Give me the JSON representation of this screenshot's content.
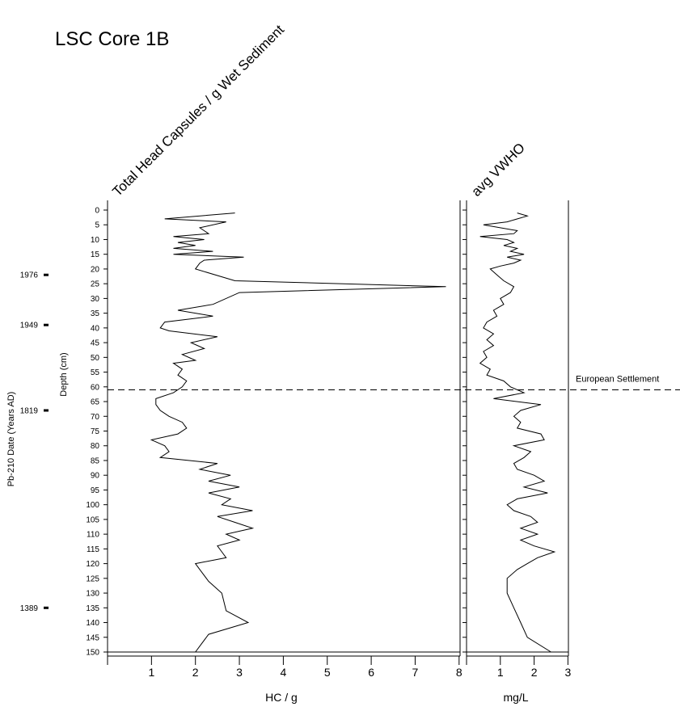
{
  "chart_data": {
    "type": "line",
    "title": "LSC Core 1B",
    "ylabel": "Depth (cm)",
    "ylim": [
      0,
      150
    ],
    "yticks": [
      0,
      5,
      10,
      15,
      20,
      25,
      30,
      35,
      40,
      45,
      50,
      55,
      60,
      65,
      70,
      75,
      80,
      85,
      90,
      95,
      100,
      105,
      110,
      115,
      120,
      125,
      130,
      135,
      140,
      145,
      150
    ],
    "y_inverted": true,
    "date_axis": {
      "label": "Pb-210 Date (Years AD)",
      "markers": [
        {
          "label": "1976",
          "depth": 22
        },
        {
          "label": "1949",
          "depth": 39
        },
        {
          "label": "1819",
          "depth": 68
        },
        {
          "label": "1389",
          "depth": 135
        }
      ]
    },
    "reference_line": {
      "depth": 61,
      "label": "European Settlement",
      "style": "dashed"
    },
    "panels": [
      {
        "title": "Total Head Capsules / g Wet Sediment",
        "xlabel": "HC / g",
        "xlim": [
          0,
          8
        ],
        "xticks": [
          1,
          2,
          3,
          4,
          5,
          6,
          7,
          8
        ],
        "series": [
          {
            "depth": [
              1,
              3,
              4,
              6,
              8,
              9,
              10,
              11,
              12,
              13,
              14,
              15,
              16,
              17,
              18,
              20,
              24,
              26,
              28,
              32,
              34,
              36,
              38,
              40,
              41,
              43,
              45,
              47,
              49,
              51,
              52,
              54,
              56,
              58,
              60,
              62,
              64,
              66,
              68,
              70,
              72,
              74,
              76,
              78,
              80,
              82,
              84,
              86,
              88,
              90,
              92,
              94,
              96,
              98,
              100,
              102,
              104,
              106,
              108,
              110,
              112,
              114,
              116,
              118,
              120,
              122,
              126,
              130,
              136,
              140,
              144,
              148,
              150
            ],
            "values": [
              2.9,
              1.3,
              2.7,
              2.1,
              2.3,
              1.5,
              2.2,
              1.6,
              2.0,
              1.5,
              2.4,
              1.5,
              3.1,
              2.2,
              2.1,
              2.0,
              2.9,
              7.7,
              3.0,
              2.4,
              1.6,
              2.4,
              1.3,
              1.2,
              1.4,
              2.5,
              1.9,
              2.2,
              1.7,
              2.0,
              1.5,
              1.7,
              1.6,
              1.8,
              1.7,
              1.5,
              1.1,
              1.1,
              1.2,
              1.4,
              1.7,
              1.8,
              1.6,
              1.0,
              1.3,
              1.4,
              1.2,
              2.5,
              2.1,
              2.8,
              2.3,
              3.0,
              2.3,
              2.8,
              2.6,
              3.3,
              2.5,
              2.9,
              3.3,
              2.7,
              3.0,
              2.5,
              2.6,
              2.7,
              2.0,
              2.1,
              2.3,
              2.6,
              2.7,
              3.2,
              2.3,
              2.1,
              2.0
            ]
          }
        ]
      },
      {
        "title": "avg VWHO",
        "xlabel": "mg/L",
        "xlim": [
          0,
          3
        ],
        "xticks": [
          1,
          2,
          3
        ],
        "series": [
          {
            "depth": [
              1,
              2,
              4,
              5,
              7,
              8,
              9,
              10,
              11,
              12,
              13,
              14,
              15,
              16,
              17,
              18,
              19,
              20,
              22,
              24,
              26,
              28,
              30,
              32,
              34,
              36,
              38,
              40,
              42,
              44,
              46,
              48,
              50,
              52,
              54,
              56,
              58,
              60,
              62,
              64,
              66,
              68,
              70,
              72,
              74,
              76,
              78,
              80,
              82,
              84,
              86,
              88,
              90,
              92,
              94,
              96,
              98,
              100,
              102,
              104,
              106,
              108,
              110,
              112,
              114,
              116,
              118,
              120,
              122,
              125,
              130,
              135,
              140,
              145,
              150
            ],
            "values": [
              1.5,
              1.8,
              1.2,
              0.5,
              1.5,
              1.4,
              0.4,
              1.2,
              1.4,
              1.1,
              1.5,
              1.3,
              1.7,
              1.2,
              1.6,
              1.4,
              1.0,
              0.7,
              0.9,
              1.1,
              1.4,
              1.3,
              1.0,
              1.1,
              0.8,
              0.9,
              0.6,
              0.5,
              0.8,
              0.6,
              0.8,
              0.5,
              0.6,
              0.4,
              0.7,
              0.6,
              1.1,
              1.3,
              1.7,
              0.8,
              2.2,
              1.6,
              1.4,
              1.6,
              1.5,
              2.2,
              2.3,
              1.4,
              1.9,
              1.7,
              1.4,
              1.5,
              2.0,
              2.3,
              1.7,
              2.4,
              1.5,
              1.2,
              1.4,
              1.9,
              2.1,
              1.6,
              2.1,
              1.6,
              2.0,
              2.6,
              2.1,
              1.8,
              1.5,
              1.2,
              1.2,
              1.4,
              1.6,
              1.8,
              2.5
            ]
          }
        ]
      }
    ]
  }
}
